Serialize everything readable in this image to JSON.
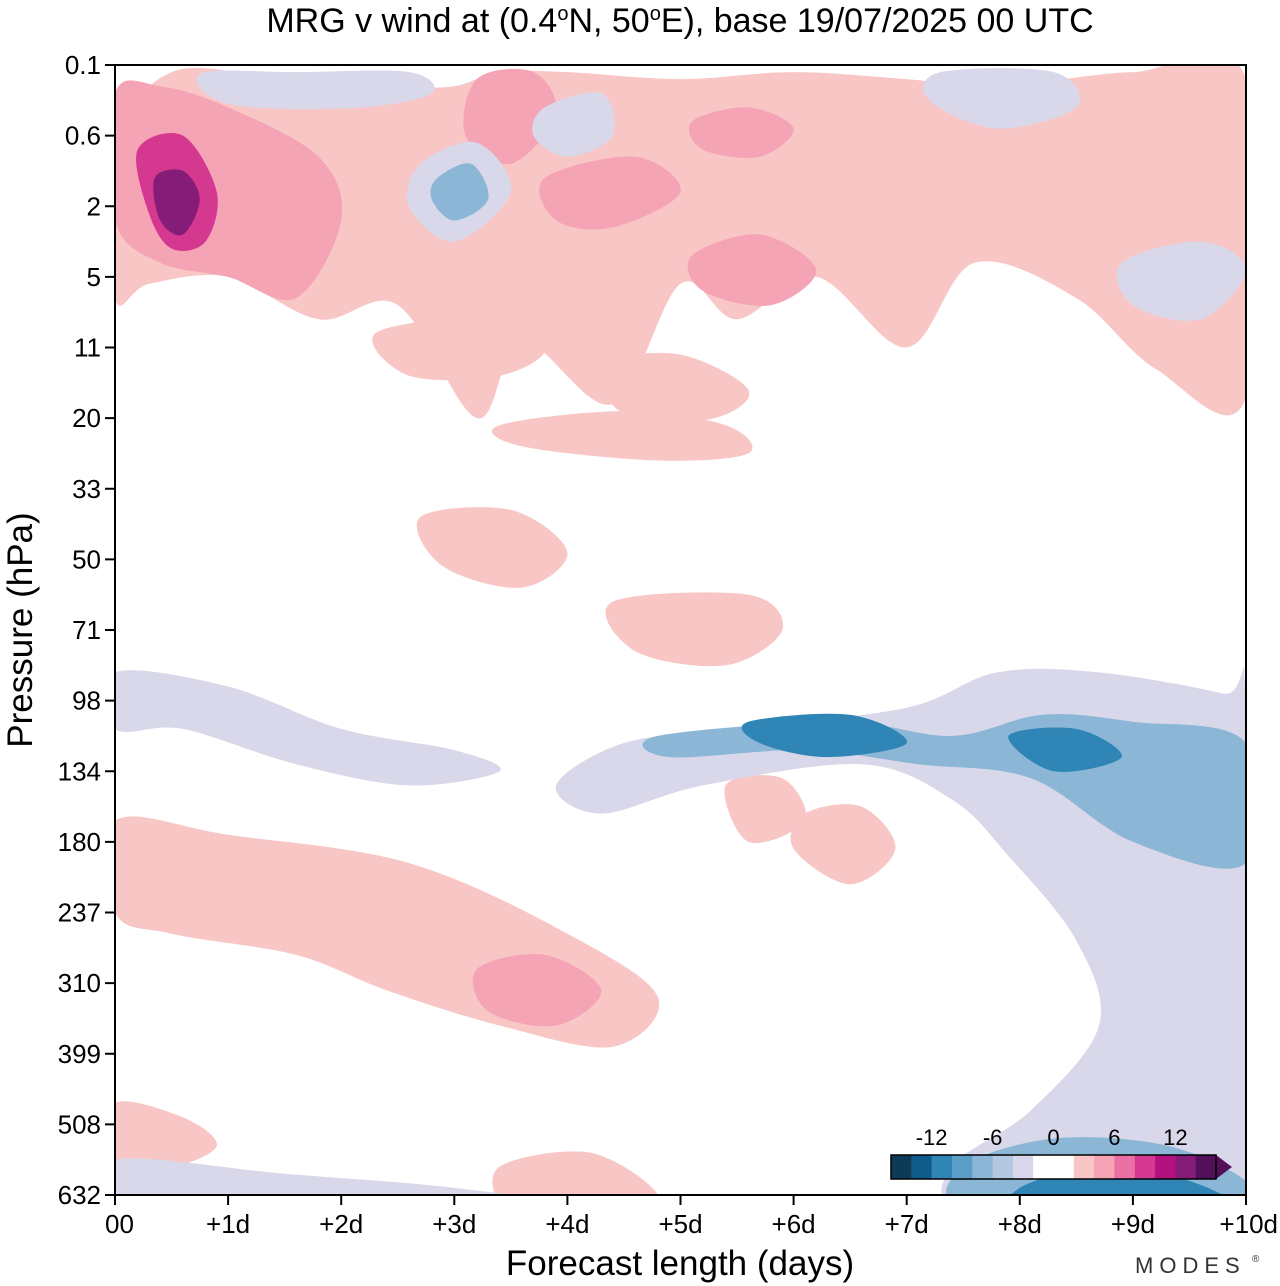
{
  "chart_data": {
    "type": "heatmap",
    "title": "MRG v wind at (0.4°N, 50°E),  base 19/07/2025  00 UTC",
    "title_parts": {
      "prefix": "MRG v wind at (0.4",
      "deg1": "o",
      "mid": "N, 50",
      "deg2": "o",
      "suffix": "E),  base 19/07/2025  00 UTC"
    },
    "xlabel": "Forecast length (days)",
    "ylabel": "Pressure (hPa)",
    "x_ticks": [
      "00",
      "+1d",
      "+2d",
      "+3d",
      "+4d",
      "+5d",
      "+6d",
      "+7d",
      "+8d",
      "+9d",
      "+10d"
    ],
    "y_ticks": [
      "0.1",
      "0.6",
      "2",
      "5",
      "11",
      "20",
      "33",
      "50",
      "71",
      "98",
      "134",
      "180",
      "237",
      "310",
      "399",
      "508",
      "632"
    ],
    "xlim": [
      0,
      10
    ],
    "colorbar": {
      "ticks": [
        "-12",
        "-6",
        "0",
        "6",
        "12"
      ],
      "colors": [
        "#0d3a57",
        "#0f5c8a",
        "#2f86b6",
        "#5c9ec8",
        "#8bb6d6",
        "#b3c7e0",
        "#d8d8ea",
        "#ffffff",
        "#ffffff",
        "#f9c6c6",
        "#f4a4b4",
        "#ea6fa3",
        "#d5388f",
        "#b3117e",
        "#851c77",
        "#530f5a"
      ]
    },
    "contours": [
      {
        "level": 3,
        "pts": [
          [
            0,
            1.2
          ],
          [
            0.5,
            0.1
          ],
          [
            1.5,
            0.2
          ],
          [
            2.5,
            0.3
          ],
          [
            3.0,
            0.3
          ],
          [
            3.4,
            0.1
          ],
          [
            4.0,
            0.1
          ],
          [
            5.0,
            0.2
          ],
          [
            6.0,
            0.1
          ],
          [
            7.0,
            0.2
          ],
          [
            7.8,
            0.3
          ],
          [
            9.0,
            0.1
          ],
          [
            10,
            0.2
          ],
          [
            10,
            4.7
          ],
          [
            9.2,
            4.3
          ],
          [
            8.5,
            3.3
          ],
          [
            7.6,
            2.8
          ],
          [
            7.0,
            4.0
          ],
          [
            6.2,
            3.0
          ],
          [
            5.5,
            3.6
          ],
          [
            5.0,
            3.1
          ],
          [
            4.4,
            4.8
          ],
          [
            3.6,
            3.9
          ],
          [
            3.2,
            5.0
          ],
          [
            2.5,
            3.4
          ],
          [
            1.8,
            3.6
          ],
          [
            1.0,
            3.0
          ],
          [
            0.3,
            3.1
          ],
          [
            0,
            3.3
          ]
        ]
      },
      {
        "level": 6,
        "pts": [
          [
            0,
            0.4
          ],
          [
            0.4,
            0.3
          ],
          [
            1.0,
            0.6
          ],
          [
            1.8,
            1.3
          ],
          [
            2.0,
            2.2
          ],
          [
            1.6,
            3.3
          ],
          [
            1.0,
            3.0
          ],
          [
            0.4,
            2.8
          ],
          [
            0,
            2.2
          ]
        ]
      },
      {
        "level": 6,
        "pts": [
          [
            3.2,
            0.2
          ],
          [
            3.7,
            0.1
          ],
          [
            3.9,
            0.7
          ],
          [
            3.5,
            1.4
          ],
          [
            3.1,
            1.0
          ]
        ]
      },
      {
        "level": 6,
        "pts": [
          [
            5.1,
            0.8
          ],
          [
            5.6,
            0.6
          ],
          [
            6.0,
            0.9
          ],
          [
            5.7,
            1.3
          ],
          [
            5.2,
            1.2
          ]
        ]
      },
      {
        "level": 6,
        "pts": [
          [
            3.8,
            1.6
          ],
          [
            4.6,
            1.3
          ],
          [
            5.0,
            1.8
          ],
          [
            4.4,
            2.3
          ],
          [
            3.9,
            2.2
          ]
        ]
      },
      {
        "level": 6,
        "pts": [
          [
            5.1,
            2.7
          ],
          [
            5.7,
            2.4
          ],
          [
            6.2,
            2.9
          ],
          [
            5.8,
            3.4
          ],
          [
            5.2,
            3.2
          ]
        ]
      },
      {
        "level": 9,
        "pts": [
          [
            0.2,
            1.2
          ],
          [
            0.6,
            1.0
          ],
          [
            0.9,
            1.8
          ],
          [
            0.8,
            2.5
          ],
          [
            0.5,
            2.6
          ],
          [
            0.3,
            2.1
          ]
        ]
      },
      {
        "level": 12,
        "pts": [
          [
            0.35,
            1.6
          ],
          [
            0.6,
            1.5
          ],
          [
            0.75,
            1.9
          ],
          [
            0.6,
            2.4
          ],
          [
            0.4,
            2.2
          ]
        ]
      },
      {
        "level": -3,
        "pts": [
          [
            0.8,
            0.1
          ],
          [
            1.6,
            0.1
          ],
          [
            2.6,
            0.1
          ],
          [
            2.8,
            0.4
          ],
          [
            2.2,
            0.6
          ],
          [
            1.2,
            0.6
          ],
          [
            0.8,
            0.4
          ]
        ]
      },
      {
        "level": -3,
        "pts": [
          [
            2.7,
            1.4
          ],
          [
            3.2,
            1.1
          ],
          [
            3.5,
            1.8
          ],
          [
            3.0,
            2.5
          ],
          [
            2.6,
            2.0
          ]
        ]
      },
      {
        "level": -6,
        "pts": [
          [
            2.85,
            1.6
          ],
          [
            3.15,
            1.4
          ],
          [
            3.3,
            1.9
          ],
          [
            3.0,
            2.2
          ],
          [
            2.8,
            1.9
          ]
        ]
      },
      {
        "level": -3,
        "pts": [
          [
            3.8,
            0.6
          ],
          [
            4.3,
            0.4
          ],
          [
            4.4,
            1.0
          ],
          [
            4.0,
            1.3
          ],
          [
            3.7,
            1.0
          ]
        ]
      },
      {
        "level": -3,
        "pts": [
          [
            7.3,
            0.1
          ],
          [
            8.3,
            0.1
          ],
          [
            8.5,
            0.6
          ],
          [
            7.8,
            0.9
          ],
          [
            7.2,
            0.5
          ]
        ]
      },
      {
        "level": -3,
        "pts": [
          [
            8.9,
            2.8
          ],
          [
            9.6,
            2.5
          ],
          [
            10,
            2.9
          ],
          [
            9.6,
            3.6
          ],
          [
            9.0,
            3.4
          ]
        ]
      },
      {
        "level": 3,
        "pts": [
          [
            2.3,
            3.8
          ],
          [
            3.2,
            3.6
          ],
          [
            3.8,
            4.0
          ],
          [
            3.4,
            4.4
          ],
          [
            2.6,
            4.4
          ]
        ]
      },
      {
        "level": 3,
        "pts": [
          [
            4.3,
            4.2
          ],
          [
            5.0,
            4.1
          ],
          [
            5.6,
            4.6
          ],
          [
            5.3,
            5.0
          ],
          [
            4.6,
            5.0
          ],
          [
            4.3,
            4.6
          ]
        ]
      },
      {
        "level": 3,
        "pts": [
          [
            3.4,
            5.1
          ],
          [
            4.5,
            4.9
          ],
          [
            5.4,
            5.1
          ],
          [
            5.6,
            5.5
          ],
          [
            4.8,
            5.6
          ],
          [
            3.6,
            5.4
          ]
        ]
      },
      {
        "level": 3,
        "pts": [
          [
            2.7,
            6.4
          ],
          [
            3.5,
            6.3
          ],
          [
            4.0,
            6.9
          ],
          [
            3.6,
            7.4
          ],
          [
            2.9,
            7.1
          ]
        ]
      },
      {
        "level": 3,
        "pts": [
          [
            4.4,
            7.6
          ],
          [
            5.6,
            7.5
          ],
          [
            5.9,
            8.0
          ],
          [
            5.4,
            8.5
          ],
          [
            4.6,
            8.3
          ]
        ]
      },
      {
        "level": 3,
        "pts": [
          [
            0,
            10.7
          ],
          [
            1.0,
            10.9
          ],
          [
            2.6,
            11.3
          ],
          [
            4.0,
            12.3
          ],
          [
            4.8,
            13.2
          ],
          [
            4.4,
            13.9
          ],
          [
            3.4,
            13.6
          ],
          [
            2.4,
            13.1
          ],
          [
            1.6,
            12.6
          ],
          [
            0.5,
            12.3
          ],
          [
            0,
            12.0
          ]
        ]
      },
      {
        "level": 6,
        "pts": [
          [
            3.2,
            12.8
          ],
          [
            3.8,
            12.6
          ],
          [
            4.3,
            13.1
          ],
          [
            3.9,
            13.6
          ],
          [
            3.3,
            13.4
          ]
        ]
      },
      {
        "level": 3,
        "pts": [
          [
            0,
            14.7
          ],
          [
            0.6,
            14.9
          ],
          [
            0.9,
            15.3
          ],
          [
            0.5,
            15.6
          ],
          [
            0,
            15.5
          ]
        ]
      },
      {
        "level": 3,
        "pts": [
          [
            3.4,
            15.6
          ],
          [
            4.2,
            15.4
          ],
          [
            4.8,
            16.0
          ],
          [
            4.4,
            16.2
          ],
          [
            3.5,
            16.2
          ]
        ]
      },
      {
        "level": 3,
        "pts": [
          [
            5.4,
            10.2
          ],
          [
            5.9,
            10.1
          ],
          [
            6.1,
            10.7
          ],
          [
            5.6,
            11.0
          ]
        ]
      },
      {
        "level": 3,
        "pts": [
          [
            6.1,
            10.6
          ],
          [
            6.6,
            10.5
          ],
          [
            6.9,
            11.1
          ],
          [
            6.5,
            11.6
          ],
          [
            6.0,
            11.1
          ]
        ]
      },
      {
        "level": -3,
        "pts": [
          [
            4.5,
            9.6
          ],
          [
            5.5,
            9.4
          ],
          [
            7.0,
            9.1
          ],
          [
            7.8,
            8.6
          ],
          [
            8.7,
            8.6
          ],
          [
            9.8,
            8.9
          ],
          [
            10,
            9.1
          ],
          [
            10,
            16.2
          ],
          [
            7.6,
            16.2
          ],
          [
            7.4,
            15.6
          ],
          [
            8.1,
            14.8
          ],
          [
            8.7,
            13.6
          ],
          [
            8.5,
            12.4
          ],
          [
            7.9,
            11.2
          ],
          [
            7.4,
            10.4
          ],
          [
            6.6,
            9.9
          ],
          [
            5.2,
            10.2
          ],
          [
            4.3,
            10.6
          ],
          [
            3.9,
            10.2
          ]
        ]
      },
      {
        "level": -6,
        "pts": [
          [
            4.8,
            9.5
          ],
          [
            6.4,
            9.3
          ],
          [
            7.4,
            9.5
          ],
          [
            8.2,
            9.2
          ],
          [
            9.0,
            9.3
          ],
          [
            10,
            9.6
          ],
          [
            10,
            11.3
          ],
          [
            9.0,
            11.0
          ],
          [
            8.1,
            10.1
          ],
          [
            7.1,
            9.9
          ],
          [
            6.1,
            9.7
          ],
          [
            4.9,
            9.8
          ]
        ]
      },
      {
        "level": -9,
        "pts": [
          [
            5.6,
            9.3
          ],
          [
            6.5,
            9.2
          ],
          [
            7.0,
            9.6
          ],
          [
            6.3,
            9.8
          ],
          [
            5.7,
            9.6
          ]
        ]
      },
      {
        "level": -9,
        "pts": [
          [
            7.9,
            9.5
          ],
          [
            8.5,
            9.4
          ],
          [
            8.9,
            9.8
          ],
          [
            8.3,
            10.0
          ]
        ]
      },
      {
        "level": -6,
        "pts": [
          [
            7.5,
            15.6
          ],
          [
            8.3,
            15.2
          ],
          [
            9.3,
            15.3
          ],
          [
            10,
            15.8
          ],
          [
            10,
            16.2
          ],
          [
            7.6,
            16.2
          ]
        ]
      },
      {
        "level": -9,
        "pts": [
          [
            8.0,
            15.9
          ],
          [
            8.7,
            15.6
          ],
          [
            9.5,
            15.8
          ],
          [
            9.8,
            16.2
          ],
          [
            8.1,
            16.2
          ]
        ]
      },
      {
        "level": -3,
        "pts": [
          [
            0,
            8.6
          ],
          [
            1.0,
            8.8
          ],
          [
            2.0,
            9.4
          ],
          [
            3.0,
            9.7
          ],
          [
            3.4,
            10.0
          ],
          [
            2.6,
            10.2
          ],
          [
            1.6,
            9.9
          ],
          [
            0.6,
            9.4
          ],
          [
            0,
            9.4
          ]
        ]
      },
      {
        "level": -3,
        "pts": [
          [
            0,
            15.5
          ],
          [
            1.5,
            15.7
          ],
          [
            3.0,
            15.9
          ],
          [
            4.0,
            16.2
          ],
          [
            0,
            16.2
          ]
        ]
      }
    ]
  }
}
